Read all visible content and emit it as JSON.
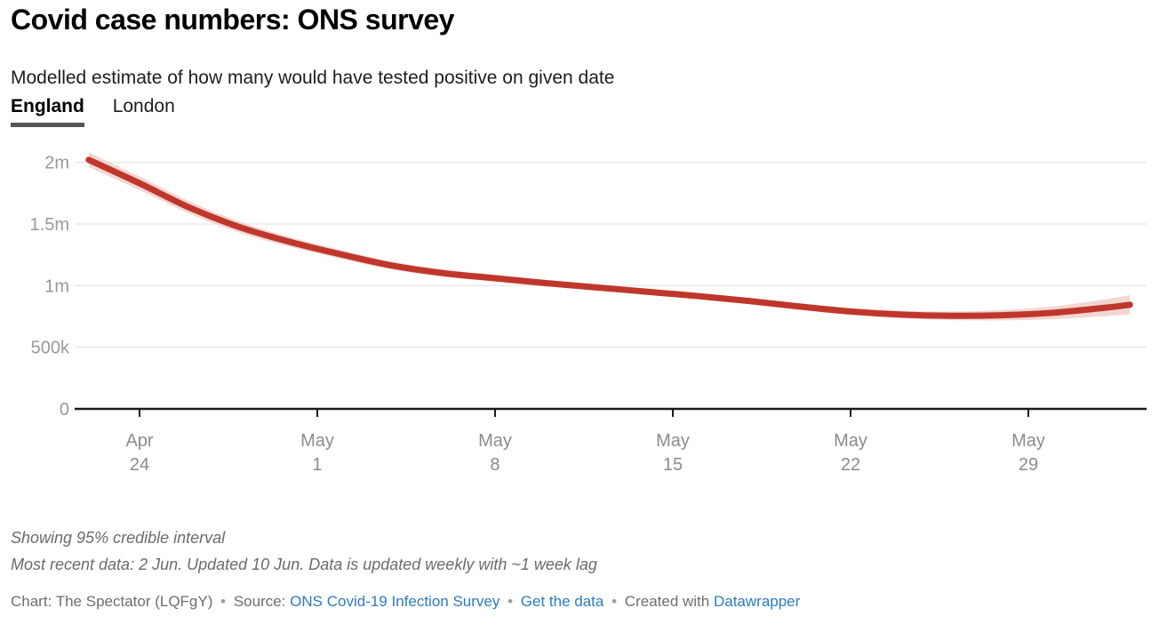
{
  "header": {
    "title": "Covid case numbers: ONS survey",
    "subtitle": "Modelled estimate of how many would have tested positive on given date",
    "tabs": [
      {
        "label": "England",
        "active": true
      },
      {
        "label": "London",
        "active": false
      }
    ]
  },
  "colors": {
    "line": "#bf372c",
    "band": "#f2d6d2",
    "gridline": "#e8e8e8",
    "axis_baseline": "#1a1a1a",
    "axis_label": "#8c8c8c",
    "y_label": "#999999",
    "link_blue": "#2d7bbf",
    "tab_underline": "#555555"
  },
  "chart_data": {
    "type": "line",
    "title": "Covid case numbers: ONS survey",
    "visible_series": "England",
    "band_label": "95% credible interval",
    "ylabel": "",
    "xlabel": "",
    "ylim": [
      0,
      2100000
    ],
    "grid": true,
    "y_ticks": [
      {
        "label": "2m",
        "value": 2000000
      },
      {
        "label": "1.5m",
        "value": 1500000
      },
      {
        "label": "1m",
        "value": 1000000
      },
      {
        "label": "500k",
        "value": 500000
      },
      {
        "label": "0",
        "value": 0
      }
    ],
    "x_ticks": [
      {
        "line1": "Apr",
        "line2": "24",
        "day": 2
      },
      {
        "line1": "May",
        "line2": "1",
        "day": 9
      },
      {
        "line1": "May",
        "line2": "8",
        "day": 16
      },
      {
        "line1": "May",
        "line2": "15",
        "day": 23
      },
      {
        "line1": "May",
        "line2": "22",
        "day": 30
      },
      {
        "line1": "May",
        "line2": "29",
        "day": 37
      }
    ],
    "points": [
      {
        "date": "22 Apr",
        "day": 0,
        "mid": 2020000,
        "lower": 1960000,
        "upper": 2080000
      },
      {
        "date": "24 Apr",
        "day": 2,
        "mid": 1830000,
        "lower": 1775000,
        "upper": 1885000
      },
      {
        "date": "26 Apr",
        "day": 4,
        "mid": 1630000,
        "lower": 1580000,
        "upper": 1680000
      },
      {
        "date": "28 Apr",
        "day": 6,
        "mid": 1470000,
        "lower": 1425000,
        "upper": 1515000
      },
      {
        "date": "30 Apr",
        "day": 8,
        "mid": 1350000,
        "lower": 1310000,
        "upper": 1390000
      },
      {
        "date": "2 May",
        "day": 10,
        "mid": 1250000,
        "lower": 1215000,
        "upper": 1285000
      },
      {
        "date": "4 May",
        "day": 12,
        "mid": 1160000,
        "lower": 1128000,
        "upper": 1192000
      },
      {
        "date": "6 May",
        "day": 14,
        "mid": 1100000,
        "lower": 1070000,
        "upper": 1130000
      },
      {
        "date": "8 May",
        "day": 16,
        "mid": 1060000,
        "lower": 1032000,
        "upper": 1088000
      },
      {
        "date": "10 May",
        "day": 18,
        "mid": 1020000,
        "lower": 994000,
        "upper": 1046000
      },
      {
        "date": "12 May",
        "day": 20,
        "mid": 985000,
        "lower": 960000,
        "upper": 1010000
      },
      {
        "date": "14 May",
        "day": 22,
        "mid": 950000,
        "lower": 925000,
        "upper": 975000
      },
      {
        "date": "16 May",
        "day": 24,
        "mid": 915000,
        "lower": 890000,
        "upper": 940000
      },
      {
        "date": "18 May",
        "day": 26,
        "mid": 875000,
        "lower": 850000,
        "upper": 900000
      },
      {
        "date": "20 May",
        "day": 28,
        "mid": 830000,
        "lower": 804000,
        "upper": 856000
      },
      {
        "date": "22 May",
        "day": 30,
        "mid": 790000,
        "lower": 762000,
        "upper": 818000
      },
      {
        "date": "24 May",
        "day": 32,
        "mid": 765000,
        "lower": 734000,
        "upper": 796000
      },
      {
        "date": "26 May",
        "day": 34,
        "mid": 755000,
        "lower": 720000,
        "upper": 790000
      },
      {
        "date": "28 May",
        "day": 36,
        "mid": 760000,
        "lower": 718000,
        "upper": 802000
      },
      {
        "date": "30 May",
        "day": 38,
        "mid": 780000,
        "lower": 728000,
        "upper": 832000
      },
      {
        "date": "1 Jun",
        "day": 40,
        "mid": 820000,
        "lower": 752000,
        "upper": 888000
      },
      {
        "date": "2 Jun",
        "day": 41,
        "mid": 845000,
        "lower": 767000,
        "upper": 923000
      }
    ]
  },
  "notes": {
    "line1": "Showing 95% credible interval",
    "line2": "Most recent data: 2 Jun. Updated 10 Jun. Data is updated weekly with ~1 week lag"
  },
  "attribution": {
    "chart_credit": "Chart: The Spectator (LQFgY)",
    "separator": "•",
    "source_label": "Source:",
    "source_link": "ONS Covid-19 Infection Survey",
    "get_data_link": "Get the data",
    "created_with_label": "Created with",
    "datawrapper_link": "Datawrapper"
  }
}
